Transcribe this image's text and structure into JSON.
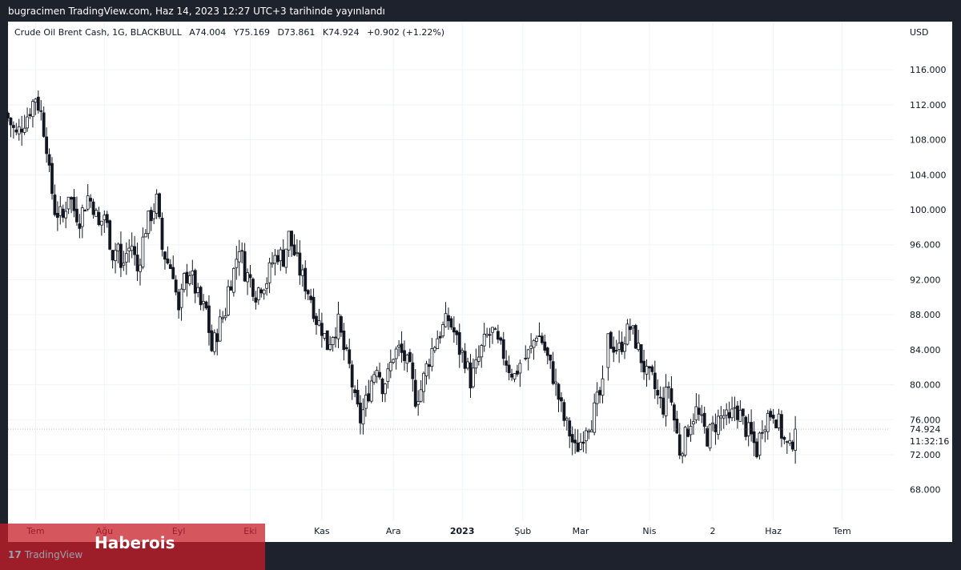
{
  "header": {
    "publisher_line": "bugracimen TradingView.com, Haz 14, 2023 12:27 UTC+3 tarihinde yayınlandı"
  },
  "legend": {
    "symbol": "Crude Oil Brent Cash, 1G, BLACKBULL",
    "open": "A74.004",
    "high": "Y75.169",
    "low": "D73.861",
    "close": "K74.924",
    "change": "+0.902 (+1.22%)"
  },
  "axis": {
    "currency": "USD",
    "last_price": "74.924",
    "countdown": "11:32:16"
  },
  "footer": {
    "brand": "TradingView",
    "brand_logo": "17"
  },
  "watermark": {
    "text": "Haberois"
  },
  "colors": {
    "up": "#ffffff",
    "down": "#131722",
    "wick": "#131722",
    "grid": "#f0f3fa",
    "overlay": "#c81e28"
  },
  "chart_data": {
    "type": "candlestick",
    "title": "Crude Oil Brent Cash, 1G, BLACKBULL",
    "ylim": [
      64.5,
      121.5
    ],
    "y_ticks": [
      "116.000",
      "112.000",
      "108.000",
      "104.000",
      "100.000",
      "96.000",
      "92.000",
      "88.000",
      "84.000",
      "80.000",
      "76.000",
      "72.000",
      "68.000"
    ],
    "x_ticks": [
      {
        "label": "Tem",
        "day": 0,
        "bold": false
      },
      {
        "label": "Ağu",
        "day": 25,
        "bold": false
      },
      {
        "label": "Eyl",
        "day": 52,
        "bold": false
      },
      {
        "label": "Eki",
        "day": 78,
        "bold": false
      },
      {
        "label": "Kas",
        "day": 104,
        "bold": false
      },
      {
        "label": "Ara",
        "day": 130,
        "bold": false
      },
      {
        "label": "2023",
        "day": 155,
        "bold": true
      },
      {
        "label": "Şub",
        "day": 177,
        "bold": false
      },
      {
        "label": "Mar",
        "day": 198,
        "bold": false
      },
      {
        "label": "Nis",
        "day": 223,
        "bold": false
      },
      {
        "label": "2",
        "day": 246,
        "bold": false
      },
      {
        "label": "Haz",
        "day": 268,
        "bold": false
      },
      {
        "label": "Tem",
        "day": 293,
        "bold": false
      }
    ],
    "x_range": [
      -10,
      310
    ],
    "anchors": [
      [
        -10,
        110.5
      ],
      [
        -7,
        108.5
      ],
      [
        -3,
        110.8
      ],
      [
        0,
        113.0
      ],
      [
        2,
        111.0
      ],
      [
        4,
        107.5
      ],
      [
        5,
        104.0
      ],
      [
        7,
        100.0
      ],
      [
        10,
        99.0
      ],
      [
        12,
        102.0
      ],
      [
        14,
        100.0
      ],
      [
        16,
        99.0
      ],
      [
        19,
        101.5
      ],
      [
        21,
        100.5
      ],
      [
        23,
        98.0
      ],
      [
        25,
        99.5
      ],
      [
        28,
        95.0
      ],
      [
        30,
        96.0
      ],
      [
        31,
        93.0
      ],
      [
        33,
        95.0
      ],
      [
        35,
        96.0
      ],
      [
        37,
        93.0
      ],
      [
        39,
        96.5
      ],
      [
        40,
        98.0
      ],
      [
        42,
        99.5
      ],
      [
        44,
        101.0
      ],
      [
        46,
        95.5
      ],
      [
        48,
        94.0
      ],
      [
        50,
        93.0
      ],
      [
        52,
        88.0
      ],
      [
        54,
        92.0
      ],
      [
        56,
        93.0
      ],
      [
        58,
        91.0
      ],
      [
        60,
        89.0
      ],
      [
        62,
        88.5
      ],
      [
        64,
        84.0
      ],
      [
        67,
        87.0
      ],
      [
        69,
        88.5
      ],
      [
        70,
        91.0
      ],
      [
        72,
        93.0
      ],
      [
        74,
        96.0
      ],
      [
        76,
        93.0
      ],
      [
        78,
        92.0
      ],
      [
        80,
        90.5
      ],
      [
        82,
        91.5
      ],
      [
        84,
        92.0
      ],
      [
        86,
        94.0
      ],
      [
        88,
        95.0
      ],
      [
        90,
        94.5
      ],
      [
        92,
        97.0
      ],
      [
        94,
        95.0
      ],
      [
        96,
        93.0
      ],
      [
        98,
        91.5
      ],
      [
        100,
        90.0
      ],
      [
        102,
        87.5
      ],
      [
        104,
        86.5
      ],
      [
        106,
        84.5
      ],
      [
        108,
        86.0
      ],
      [
        110,
        87.0
      ],
      [
        112,
        84.0
      ],
      [
        114,
        82.0
      ],
      [
        116,
        78.0
      ],
      [
        118,
        76.0
      ],
      [
        120,
        78.0
      ],
      [
        122,
        80.5
      ],
      [
        124,
        82.5
      ],
      [
        126,
        80.0
      ],
      [
        128,
        81.0
      ],
      [
        130,
        83.5
      ],
      [
        132,
        84.0
      ],
      [
        134,
        83.0
      ],
      [
        136,
        81.5
      ],
      [
        138,
        78.5
      ],
      [
        140,
        79.5
      ],
      [
        142,
        82.0
      ],
      [
        144,
        84.0
      ],
      [
        146,
        85.5
      ],
      [
        148,
        86.5
      ],
      [
        150,
        87.5
      ],
      [
        152,
        86.0
      ],
      [
        154,
        84.0
      ],
      [
        156,
        83.0
      ],
      [
        158,
        80.5
      ],
      [
        160,
        82.0
      ],
      [
        162,
        84.0
      ],
      [
        164,
        85.5
      ],
      [
        166,
        86.0
      ],
      [
        168,
        84.5
      ],
      [
        170,
        83.5
      ],
      [
        172,
        82.0
      ],
      [
        174,
        81.0
      ],
      [
        176,
        82.5
      ],
      [
        178,
        83.0
      ],
      [
        180,
        84.0
      ],
      [
        182,
        86.0
      ],
      [
        184,
        85.0
      ],
      [
        186,
        83.0
      ],
      [
        188,
        81.0
      ],
      [
        190,
        78.5
      ],
      [
        192,
        76.0
      ],
      [
        194,
        74.5
      ],
      [
        196,
        72.5
      ],
      [
        198,
        73.5
      ],
      [
        200,
        75.5
      ],
      [
        202,
        76.0
      ],
      [
        204,
        78.0
      ],
      [
        206,
        79.5
      ],
      [
        208,
        85.0
      ],
      [
        210,
        84.5
      ],
      [
        212,
        84.0
      ],
      [
        214,
        85.5
      ],
      [
        216,
        86.5
      ],
      [
        218,
        85.0
      ],
      [
        220,
        83.0
      ],
      [
        222,
        81.0
      ],
      [
        224,
        80.5
      ],
      [
        226,
        78.5
      ],
      [
        228,
        77.5
      ],
      [
        230,
        80.0
      ],
      [
        232,
        76.0
      ],
      [
        234,
        72.5
      ],
      [
        236,
        74.0
      ],
      [
        238,
        76.0
      ],
      [
        240,
        77.0
      ],
      [
        242,
        75.5
      ],
      [
        244,
        74.0
      ],
      [
        246,
        75.0
      ],
      [
        248,
        76.0
      ],
      [
        250,
        76.5
      ],
      [
        252,
        75.5
      ],
      [
        254,
        77.5
      ],
      [
        256,
        76.5
      ],
      [
        258,
        75.0
      ],
      [
        260,
        74.0
      ],
      [
        262,
        72.5
      ],
      [
        264,
        75.5
      ],
      [
        266,
        76.5
      ],
      [
        268,
        77.0
      ],
      [
        270,
        75.5
      ],
      [
        272,
        73.5
      ],
      [
        274,
        72.5
      ],
      [
        276,
        74.9
      ]
    ],
    "gap_days": [
      [
        176,
        178
      ],
      [
        206,
        208
      ]
    ],
    "last_close": 74.924
  }
}
